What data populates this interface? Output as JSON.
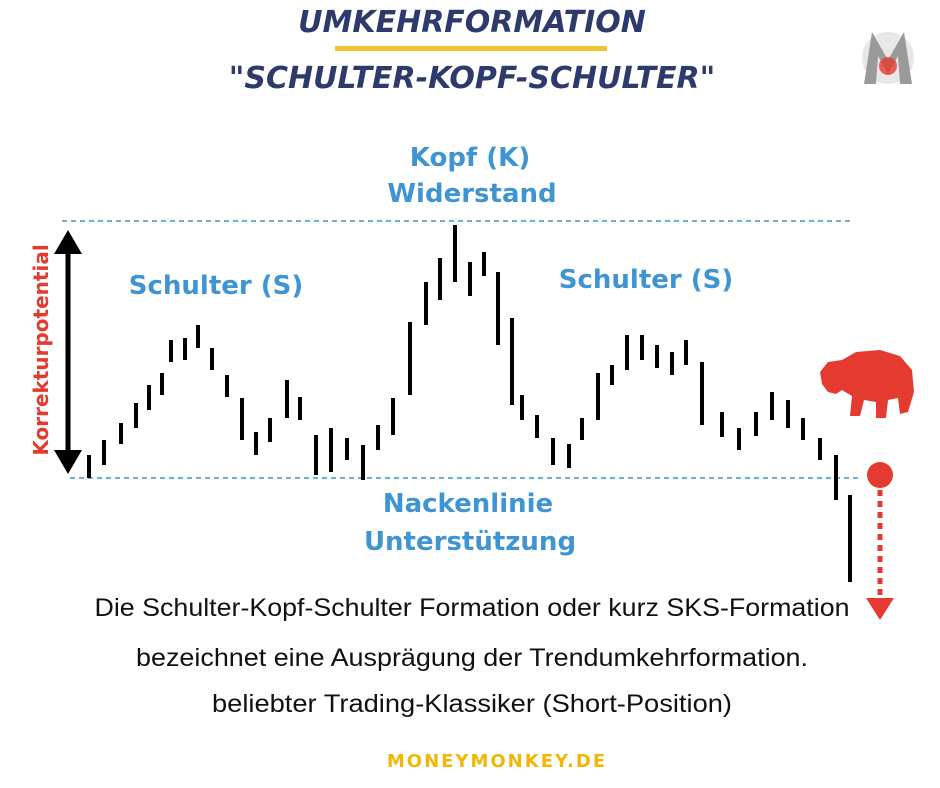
{
  "title": {
    "line1": "UMKEHRFORMATION",
    "line2": "\"SCHULTER-KOPF-SCHULTER\""
  },
  "labels": {
    "left_shoulder": "Schulter (S)",
    "head_line1": "Kopf (K)",
    "head_line2": "Widerstand",
    "right_shoulder": "Schulter (S)",
    "neckline_line1": "Nackenlinie",
    "neckline_line2": "Unterstützung",
    "vertical": "Korrekturpotential"
  },
  "description": [
    "Die Schulter-Kopf-Schulter Formation oder kurz SKS-Formation",
    "bezeichnet eine Ausprägung der Trendumkehrformation.",
    "beliebter Trading-Klassiker (Short-Position)"
  ],
  "footer": "MONEYMONKEY.DE"
}
